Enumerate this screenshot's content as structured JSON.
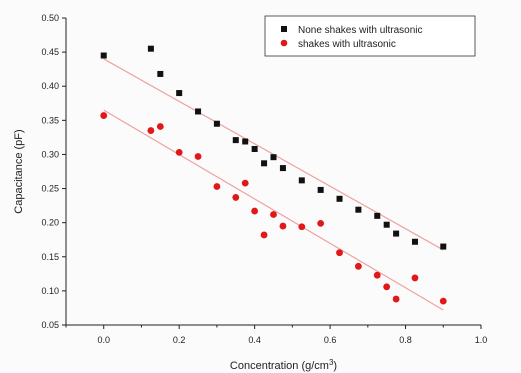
{
  "chart_data": {
    "type": "scatter",
    "title": "",
    "xlabel": "Concentration (g/cm",
    "xlabel_sup": "3",
    "xlabel_tail": ")",
    "ylabel": "Capacitance (pF)",
    "xlim": [
      -0.1,
      1.0
    ],
    "ylim": [
      0.05,
      0.5
    ],
    "x_ticks": [
      "0.0",
      "0.2",
      "0.4",
      "0.6",
      "0.8",
      "1.0"
    ],
    "y_ticks": [
      "0.05",
      "0.10",
      "0.15",
      "0.20",
      "0.25",
      "0.30",
      "0.35",
      "0.40",
      "0.45",
      "0.50"
    ],
    "grid": false,
    "legend_position": "top-right",
    "series": [
      {
        "name": "None shakes with ultrasonic",
        "marker": "square",
        "color": "#111111",
        "x": [
          0.0,
          0.125,
          0.15,
          0.2,
          0.25,
          0.3,
          0.35,
          0.375,
          0.4,
          0.425,
          0.45,
          0.475,
          0.525,
          0.575,
          0.625,
          0.675,
          0.725,
          0.75,
          0.775,
          0.825,
          0.9
        ],
        "y": [
          0.445,
          0.455,
          0.418,
          0.39,
          0.363,
          0.345,
          0.321,
          0.319,
          0.308,
          0.287,
          0.296,
          0.28,
          0.262,
          0.248,
          0.235,
          0.219,
          0.21,
          0.197,
          0.184,
          0.172,
          0.165
        ]
      },
      {
        "name": "shakes with ultrasonic",
        "marker": "circle",
        "color": "#e01818",
        "x": [
          0.0,
          0.125,
          0.15,
          0.2,
          0.25,
          0.3,
          0.35,
          0.375,
          0.4,
          0.425,
          0.45,
          0.475,
          0.525,
          0.575,
          0.625,
          0.675,
          0.725,
          0.75,
          0.775,
          0.825,
          0.9
        ],
        "y": [
          0.357,
          0.335,
          0.341,
          0.303,
          0.297,
          0.253,
          0.237,
          0.258,
          0.217,
          0.182,
          0.212,
          0.195,
          0.194,
          0.199,
          0.156,
          0.136,
          0.123,
          0.106,
          0.088,
          0.119,
          0.085
        ]
      }
    ],
    "fit_lines": [
      {
        "series": "None shakes with ultrasonic",
        "color": "#f0a0a0",
        "x": [
          0.0,
          0.9
        ],
        "y": [
          0.44,
          0.16
        ]
      },
      {
        "series": "shakes with ultrasonic",
        "color": "#f0a0a0",
        "x": [
          0.0,
          0.9
        ],
        "y": [
          0.365,
          0.072
        ]
      }
    ]
  }
}
